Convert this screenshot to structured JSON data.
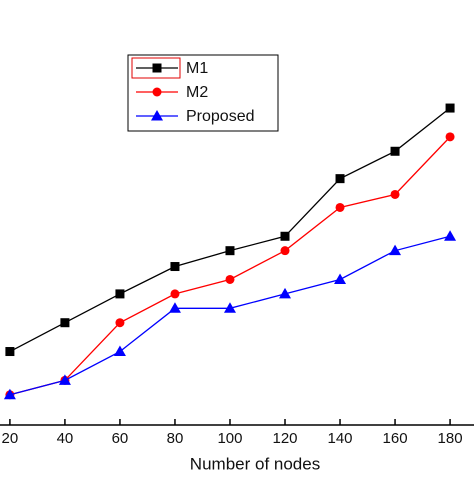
{
  "chart_data": {
    "type": "line",
    "x_label": "Number of nodes",
    "x": [
      20,
      40,
      60,
      80,
      100,
      120,
      140,
      160,
      180
    ],
    "xlim": [
      16.4,
      188.7
    ],
    "xticks": [
      20,
      40,
      60,
      80,
      100,
      120,
      140,
      160,
      180
    ],
    "ylim": [
      0,
      29.5
    ],
    "legend": "upper left",
    "series": [
      {
        "name": "M1",
        "color": "#000000",
        "marker": "square",
        "values": [
          5.1,
          7.1,
          9.1,
          11.0,
          12.1,
          13.1,
          17.1,
          19.0,
          22.0
        ]
      },
      {
        "name": "M2",
        "color": "#ff0000",
        "marker": "circle",
        "values": [
          2.1,
          3.1,
          7.1,
          9.1,
          10.1,
          12.1,
          15.1,
          16.0,
          20.0
        ]
      },
      {
        "name": "Proposed",
        "color": "#0000ff",
        "marker": "triangle",
        "values": [
          2.1,
          3.1,
          5.1,
          8.1,
          8.1,
          9.1,
          10.1,
          12.1,
          13.1
        ]
      }
    ]
  }
}
